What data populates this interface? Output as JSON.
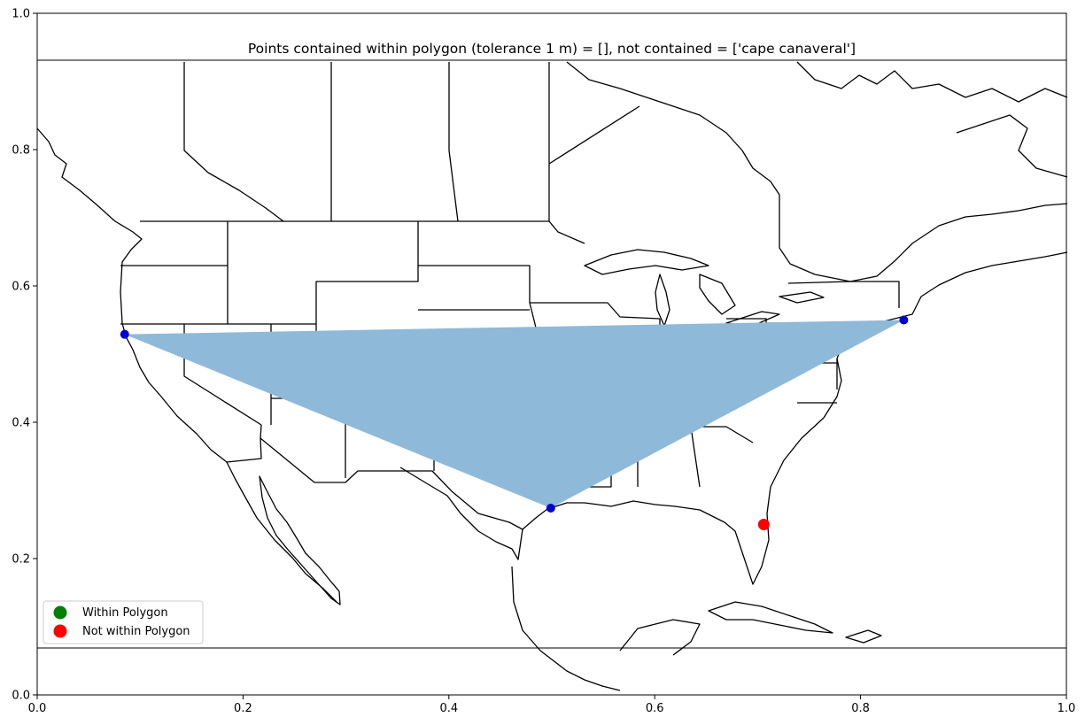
{
  "chart_data": {
    "type": "scatter",
    "title": "Points contained within polygon (tolerance 1 m) = [], not contained = ['cape canaveral']",
    "xlabel": "",
    "ylabel": "",
    "xlim": [
      0.0,
      1.0
    ],
    "ylim": [
      0.0,
      1.0
    ],
    "xticks": [
      "0.0",
      "0.2",
      "0.4",
      "0.6",
      "0.8",
      "1.0"
    ],
    "yticks": [
      "0.0",
      "0.2",
      "0.4",
      "0.6",
      "0.8",
      "1.0"
    ],
    "xtick_values": [
      0.0,
      0.2,
      0.4,
      0.6,
      0.8,
      1.0
    ],
    "ytick_values": [
      0.0,
      0.2,
      0.4,
      0.6,
      0.8,
      1.0
    ],
    "grid": false,
    "legend_position": "lower-left",
    "map_extent_y": [
      0.068,
      0.932
    ],
    "polygon": {
      "color": "#8fb9d9",
      "vertices": [
        {
          "x": 0.085,
          "y": 0.529
        },
        {
          "x": 0.842,
          "y": 0.55
        },
        {
          "x": 0.499,
          "y": 0.274
        }
      ]
    },
    "vertex_points": {
      "color": "#0000cc",
      "points": [
        {
          "x": 0.085,
          "y": 0.529
        },
        {
          "x": 0.842,
          "y": 0.55
        },
        {
          "x": 0.499,
          "y": 0.274
        }
      ]
    },
    "series": [
      {
        "name": "Within Polygon",
        "color": "#008000",
        "points": []
      },
      {
        "name": "Not within Polygon",
        "color": "#ff0000",
        "points": [
          {
            "x": 0.706,
            "y": 0.25
          }
        ]
      }
    ]
  }
}
